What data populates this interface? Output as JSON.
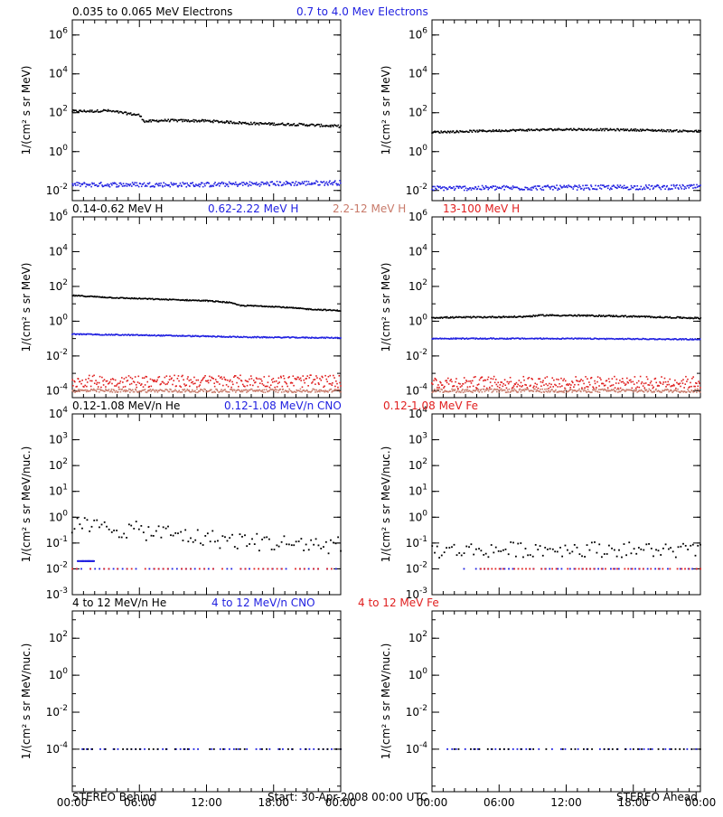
{
  "colors": {
    "black": "#000000",
    "blue": "#1f1fe0",
    "salmon": "#c87a6a",
    "red": "#e01f1f"
  },
  "row_titles": [
    [
      {
        "text": "0.035 to 0.065 MeV Electrons",
        "color": "#000000"
      },
      {
        "text": "0.7 to 4.0 Mev Electrons",
        "color": "#1f1fe0"
      }
    ],
    [
      {
        "text": "0.14-0.62 MeV H",
        "color": "#000000"
      },
      {
        "text": "0.62-2.22 MeV H",
        "color": "#1f1fe0"
      },
      {
        "text": "2.2-12 MeV H",
        "color": "#c87a6a"
      },
      {
        "text": "13-100 MeV H",
        "color": "#e01f1f"
      }
    ],
    [
      {
        "text": "0.12-1.08 MeV/n He",
        "color": "#000000"
      },
      {
        "text": "0.12-1.08 MeV/n CNO",
        "color": "#1f1fe0"
      },
      {
        "text": "0.12-1.08 MeV Fe",
        "color": "#e01f1f"
      }
    ],
    [
      {
        "text": "4 to 12 MeV/n He",
        "color": "#000000"
      },
      {
        "text": "4 to 12 MeV/n CNO",
        "color": "#1f1fe0"
      },
      {
        "text": "4 to 12 MeV Fe",
        "color": "#e01f1f"
      }
    ]
  ],
  "footer": {
    "left": "STEREO Behind",
    "center": "Start: 30-Apr-2008 00:00 UTC",
    "right": "STEREO Ahead"
  },
  "chart_data": [
    {
      "type": "scatter",
      "row": 0,
      "col": 0,
      "ylog": true,
      "ylim": [
        0.003,
        6000000
      ],
      "yticks": [
        {
          "v": 0.01,
          "m": "10",
          "e": "-2"
        },
        {
          "v": 1,
          "m": "10",
          "e": "0"
        },
        {
          "v": 100,
          "m": "10",
          "e": "2"
        },
        {
          "v": 10000,
          "m": "10",
          "e": "4"
        },
        {
          "v": 1000000,
          "m": "10",
          "e": "6"
        }
      ],
      "ylabel": "1/(cm² s sr MeV)",
      "xticks": [],
      "xlim": [
        0,
        24
      ],
      "series": [
        {
          "color": "#000000",
          "style": "dense",
          "trend": [
            [
              0,
              120
            ],
            [
              2,
              120
            ],
            [
              3,
              130
            ],
            [
              5,
              90
            ],
            [
              6,
              75
            ],
            [
              6.5,
              35
            ],
            [
              8,
              40
            ],
            [
              12,
              38
            ],
            [
              16,
              28
            ],
            [
              20,
              25
            ],
            [
              24,
              20
            ]
          ],
          "noise": 0.06
        },
        {
          "color": "#1f1fe0",
          "style": "dense",
          "trend": [
            [
              0,
              0.02
            ],
            [
              12,
              0.02
            ],
            [
              24,
              0.025
            ]
          ],
          "noise": 0.12
        }
      ]
    },
    {
      "type": "scatter",
      "row": 0,
      "col": 1,
      "ylog": true,
      "ylim": [
        0.003,
        6000000
      ],
      "yticks": [
        {
          "v": 0.01,
          "m": "10",
          "e": "-2"
        },
        {
          "v": 1,
          "m": "10",
          "e": "0"
        },
        {
          "v": 100,
          "m": "10",
          "e": "2"
        },
        {
          "v": 10000,
          "m": "10",
          "e": "4"
        },
        {
          "v": 1000000,
          "m": "10",
          "e": "6"
        }
      ],
      "ylabel": "1/(cm² s sr MeV)",
      "xticks": [],
      "xlim": [
        0,
        24
      ],
      "series": [
        {
          "color": "#000000",
          "style": "dense",
          "trend": [
            [
              0,
              10
            ],
            [
              6,
              12
            ],
            [
              12,
              14
            ],
            [
              18,
              13
            ],
            [
              24,
              11
            ]
          ],
          "noise": 0.05
        },
        {
          "color": "#1f1fe0",
          "style": "dense",
          "trend": [
            [
              0,
              0.013
            ],
            [
              12,
              0.014
            ],
            [
              24,
              0.015
            ]
          ],
          "noise": 0.12
        }
      ]
    },
    {
      "type": "scatter",
      "row": 1,
      "col": 0,
      "ylog": true,
      "ylim": [
        4e-05,
        1000000
      ],
      "yticks": [
        {
          "v": 0.0001,
          "m": "10",
          "e": "-4"
        },
        {
          "v": 0.01,
          "m": "10",
          "e": "-2"
        },
        {
          "v": 1,
          "m": "10",
          "e": "0"
        },
        {
          "v": 100,
          "m": "10",
          "e": "2"
        },
        {
          "v": 10000,
          "m": "10",
          "e": "4"
        },
        {
          "v": 1000000,
          "m": "10",
          "e": "6"
        }
      ],
      "ylabel": "1/(cm² s sr MeV)",
      "xticks": [],
      "xlim": [
        0,
        24
      ],
      "series": [
        {
          "color": "#000000",
          "style": "dense",
          "trend": [
            [
              0,
              30
            ],
            [
              4,
              22
            ],
            [
              8,
              18
            ],
            [
              12,
              15
            ],
            [
              14,
              12
            ],
            [
              15,
              8
            ],
            [
              18,
              7
            ],
            [
              21,
              5
            ],
            [
              24,
              4
            ]
          ],
          "noise": 0.03
        },
        {
          "color": "#1f1fe0",
          "style": "dense",
          "trend": [
            [
              0,
              0.18
            ],
            [
              8,
              0.15
            ],
            [
              16,
              0.12
            ],
            [
              24,
              0.11
            ]
          ],
          "noise": 0.03
        },
        {
          "color": "#c87a6a",
          "style": "dense",
          "trend": [
            [
              0,
              0.0001
            ],
            [
              24,
              0.0001
            ]
          ],
          "noise": 0.1
        },
        {
          "color": "#e01f1f",
          "style": "dense",
          "trend": [
            [
              0,
              0.00035
            ],
            [
              24,
              0.00035
            ]
          ],
          "noise": 0.35
        }
      ]
    },
    {
      "type": "scatter",
      "row": 1,
      "col": 1,
      "ylog": true,
      "ylim": [
        4e-05,
        1000000
      ],
      "yticks": [
        {
          "v": 0.0001,
          "m": "10",
          "e": "-4"
        },
        {
          "v": 0.01,
          "m": "10",
          "e": "-2"
        },
        {
          "v": 1,
          "m": "10",
          "e": "0"
        },
        {
          "v": 100,
          "m": "10",
          "e": "2"
        },
        {
          "v": 10000,
          "m": "10",
          "e": "4"
        },
        {
          "v": 1000000,
          "m": "10",
          "e": "6"
        }
      ],
      "ylabel": "1/(cm² s sr MeV)",
      "xticks": [],
      "xlim": [
        0,
        24
      ],
      "series": [
        {
          "color": "#000000",
          "style": "dense",
          "trend": [
            [
              0,
              1.6
            ],
            [
              8,
              1.8
            ],
            [
              10,
              2.2
            ],
            [
              16,
              2.0
            ],
            [
              24,
              1.5
            ]
          ],
          "noise": 0.04
        },
        {
          "color": "#1f1fe0",
          "style": "dense",
          "trend": [
            [
              0,
              0.1
            ],
            [
              12,
              0.1
            ],
            [
              24,
              0.09
            ]
          ],
          "noise": 0.03
        },
        {
          "color": "#c87a6a",
          "style": "dense",
          "trend": [
            [
              0,
              0.0001
            ],
            [
              24,
              0.0001
            ]
          ],
          "noise": 0.1
        },
        {
          "color": "#e01f1f",
          "style": "dense",
          "trend": [
            [
              0,
              0.0003
            ],
            [
              24,
              0.0003
            ]
          ],
          "noise": 0.35
        }
      ]
    },
    {
      "type": "scatter",
      "row": 2,
      "col": 0,
      "ylog": true,
      "ylim": [
        0.001,
        10000
      ],
      "yticks": [
        {
          "v": 0.001,
          "m": "10",
          "e": "-3"
        },
        {
          "v": 0.01,
          "m": "10",
          "e": "-2"
        },
        {
          "v": 0.1,
          "m": "10",
          "e": "-1"
        },
        {
          "v": 1,
          "m": "10",
          "e": "0"
        },
        {
          "v": 10,
          "m": "10",
          "e": "1"
        },
        {
          "v": 100,
          "m": "10",
          "e": "2"
        },
        {
          "v": 1000,
          "m": "10",
          "e": "3"
        },
        {
          "v": 10000,
          "m": "10",
          "e": "4"
        }
      ],
      "ylabel": "1/(cm² s sr MeV/nuc.)",
      "xticks": [],
      "xlim": [
        0,
        24
      ],
      "series": [
        {
          "color": "#000000",
          "style": "sparse",
          "trend": [
            [
              0,
              0.5
            ],
            [
              4,
              0.35
            ],
            [
              8,
              0.25
            ],
            [
              12,
              0.15
            ],
            [
              18,
              0.1
            ],
            [
              24,
              0.08
            ]
          ],
          "noise": 0.35
        },
        {
          "color": "#1f1fe0",
          "style": "level",
          "trend": [
            [
              0,
              0.01
            ],
            [
              24,
              0.01
            ]
          ],
          "noise": 0
        },
        {
          "color": "#1f1fe0",
          "style": "level",
          "trend": [
            [
              0.5,
              0.02
            ],
            [
              2,
              0.02
            ]
          ],
          "noise": 0
        },
        {
          "color": "#e01f1f",
          "style": "level",
          "trend": [
            [
              0,
              0.01
            ],
            [
              24,
              0.01
            ]
          ],
          "noise": 0
        }
      ]
    },
    {
      "type": "scatter",
      "row": 2,
      "col": 1,
      "ylog": true,
      "ylim": [
        0.001,
        10000
      ],
      "yticks": [
        {
          "v": 0.001,
          "m": "10",
          "e": "-3"
        },
        {
          "v": 0.01,
          "m": "10",
          "e": "-2"
        },
        {
          "v": 0.1,
          "m": "10",
          "e": "-1"
        },
        {
          "v": 1,
          "m": "10",
          "e": "0"
        },
        {
          "v": 10,
          "m": "10",
          "e": "1"
        },
        {
          "v": 100,
          "m": "10",
          "e": "2"
        },
        {
          "v": 1000,
          "m": "10",
          "e": "3"
        },
        {
          "v": 10000,
          "m": "10",
          "e": "4"
        }
      ],
      "ylabel": "1/(cm² s sr MeV/nuc.)",
      "xticks": [],
      "xlim": [
        0,
        24
      ],
      "series": [
        {
          "color": "#000000",
          "style": "sparse",
          "trend": [
            [
              0,
              0.05
            ],
            [
              12,
              0.06
            ],
            [
              24,
              0.05
            ]
          ],
          "noise": 0.3
        },
        {
          "color": "#1f1fe0",
          "style": "level",
          "trend": [
            [
              2.5,
              0.01
            ],
            [
              24,
              0.01
            ]
          ],
          "noise": 0
        },
        {
          "color": "#e01f1f",
          "style": "level",
          "trend": [
            [
              4,
              0.01
            ],
            [
              24,
              0.01
            ]
          ],
          "noise": 0
        }
      ]
    },
    {
      "type": "scatter",
      "row": 3,
      "col": 0,
      "ylog": true,
      "ylim": [
        5e-07,
        3000
      ],
      "yticks": [
        {
          "v": 0.0001,
          "m": "10",
          "e": "-4"
        },
        {
          "v": 0.01,
          "m": "10",
          "e": "-2"
        },
        {
          "v": 1,
          "m": "10",
          "e": "0"
        },
        {
          "v": 100,
          "m": "10",
          "e": "2"
        }
      ],
      "ylabel": "1/(cm² s sr MeV/nuc.)",
      "xticks": [
        "00:00",
        "06:00",
        "12:00",
        "18:00",
        "00:00"
      ],
      "xlim": [
        0,
        24
      ],
      "series": [
        {
          "color": "#1f1fe0",
          "style": "level",
          "trend": [
            [
              0.5,
              0.0001
            ],
            [
              24,
              0.0001
            ]
          ],
          "noise": 0
        },
        {
          "color": "#000000",
          "style": "level",
          "trend": [
            [
              1,
              0.0001
            ],
            [
              24,
              0.0001
            ]
          ],
          "noise": 0
        }
      ]
    },
    {
      "type": "scatter",
      "row": 3,
      "col": 1,
      "ylog": true,
      "ylim": [
        5e-07,
        3000
      ],
      "yticks": [
        {
          "v": 0.0001,
          "m": "10",
          "e": "-4"
        },
        {
          "v": 0.01,
          "m": "10",
          "e": "-2"
        },
        {
          "v": 1,
          "m": "10",
          "e": "0"
        },
        {
          "v": 100,
          "m": "10",
          "e": "2"
        }
      ],
      "ylabel": "1/(cm² s sr MeV/nuc.)",
      "xticks": [
        "00:00",
        "06:00",
        "12:00",
        "18:00",
        "00:00"
      ],
      "xlim": [
        0,
        24
      ],
      "series": [
        {
          "color": "#1f1fe0",
          "style": "level",
          "trend": [
            [
              1,
              0.0001
            ],
            [
              24,
              0.0001
            ]
          ],
          "noise": 0
        },
        {
          "color": "#000000",
          "style": "level",
          "trend": [
            [
              2,
              0.0001
            ],
            [
              24,
              0.0001
            ]
          ],
          "noise": 0
        }
      ]
    }
  ]
}
